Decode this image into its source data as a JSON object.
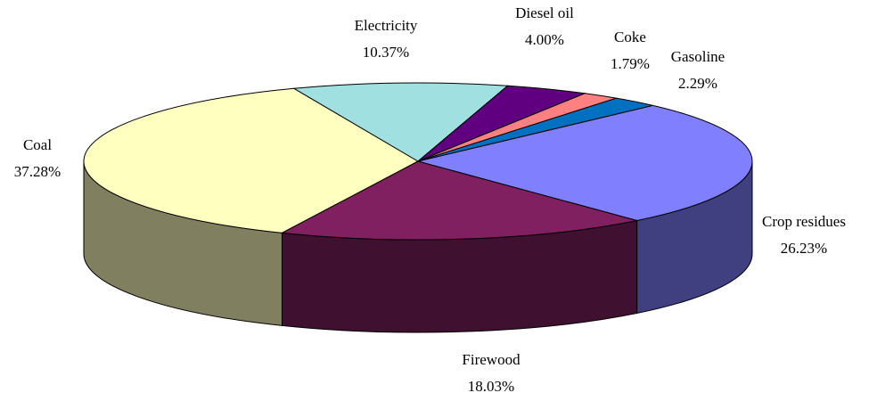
{
  "chart_data": {
    "type": "pie3d",
    "categories": [
      "Coal",
      "Electricity",
      "Diesel oil",
      "Coke",
      "Gasoline",
      "Crop residues",
      "Firewood"
    ],
    "values": [
      37.28,
      10.37,
      4.0,
      1.79,
      2.29,
      26.23,
      18.03
    ],
    "value_labels": [
      "37.28%",
      "10.37%",
      "4.00%",
      "1.79%",
      "2.29%",
      "26.23%",
      "18.03%"
    ],
    "colors": [
      "#ffffc0",
      "#a0e0e0",
      "#600080",
      "#ff8080",
      "#0070c0",
      "#8080ff",
      "#802060"
    ]
  }
}
